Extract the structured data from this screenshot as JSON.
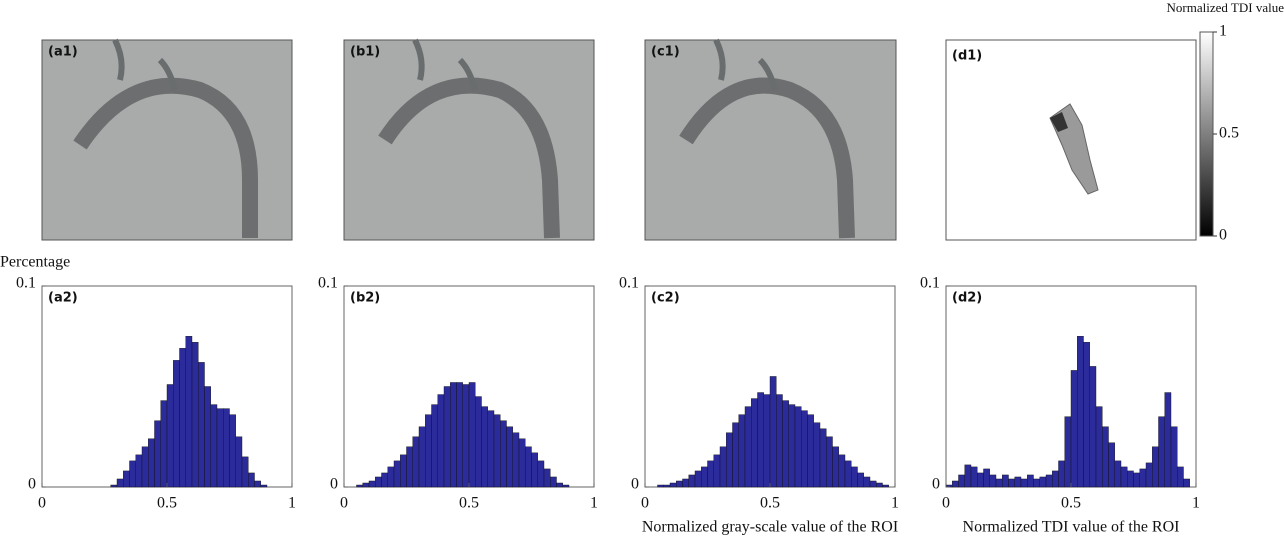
{
  "images": [
    {
      "label": "(a1)"
    },
    {
      "label": "(b1)"
    },
    {
      "label": "(c1)"
    },
    {
      "label": "(d1)"
    }
  ],
  "colorbar": {
    "title": "Normalized TDI value",
    "lim": [
      0,
      1
    ],
    "ticks": [
      0,
      0.5,
      1
    ]
  },
  "chart_data": [
    {
      "type": "histogram",
      "panel_label": "(a2)",
      "ylabel": "Percentage",
      "color": "#2b2b9c",
      "xlim": [
        0,
        1
      ],
      "ylim": [
        0,
        0.1
      ],
      "xticks": [
        0,
        0.5,
        1
      ],
      "yticks": [
        0,
        0.1
      ],
      "bins": [
        0,
        0.025,
        0.05,
        0.075,
        0.1,
        0.125,
        0.15,
        0.175,
        0.2,
        0.225,
        0.25,
        0.275,
        0.3,
        0.325,
        0.35,
        0.375,
        0.4,
        0.425,
        0.45,
        0.475,
        0.5,
        0.525,
        0.55,
        0.575,
        0.6,
        0.625,
        0.65,
        0.675,
        0.7,
        0.725,
        0.75,
        0.775,
        0.8,
        0.825,
        0.85,
        0.875,
        0.9,
        0.925,
        0.95,
        0.975,
        1
      ],
      "values": [
        0,
        0,
        0,
        0,
        0,
        0,
        0,
        0,
        0,
        0,
        0,
        0.001,
        0.004,
        0.008,
        0.013,
        0.016,
        0.02,
        0.024,
        0.033,
        0.043,
        0.051,
        0.063,
        0.069,
        0.075,
        0.072,
        0.062,
        0.05,
        0.041,
        0.039,
        0.039,
        0.036,
        0.025,
        0.015,
        0.007,
        0.003,
        0.001,
        0,
        0,
        0,
        0
      ]
    },
    {
      "type": "histogram",
      "panel_label": "(b2)",
      "color": "#2b2b9c",
      "xlim": [
        0,
        1
      ],
      "ylim": [
        0,
        0.1
      ],
      "xticks": [
        0,
        0.5,
        1
      ],
      "yticks": [
        0,
        0.1
      ],
      "bins": [
        0,
        0.025,
        0.05,
        0.075,
        0.1,
        0.125,
        0.15,
        0.175,
        0.2,
        0.225,
        0.25,
        0.275,
        0.3,
        0.325,
        0.35,
        0.375,
        0.4,
        0.425,
        0.45,
        0.475,
        0.5,
        0.525,
        0.55,
        0.575,
        0.6,
        0.625,
        0.65,
        0.675,
        0.7,
        0.725,
        0.75,
        0.775,
        0.8,
        0.825,
        0.85,
        0.875,
        0.9,
        0.925,
        0.95,
        0.975,
        1
      ],
      "values": [
        0,
        0,
        0.001,
        0.002,
        0.003,
        0.005,
        0.007,
        0.01,
        0.013,
        0.016,
        0.02,
        0.025,
        0.03,
        0.036,
        0.041,
        0.046,
        0.05,
        0.052,
        0.052,
        0.051,
        0.052,
        0.045,
        0.04,
        0.038,
        0.036,
        0.033,
        0.03,
        0.027,
        0.024,
        0.02,
        0.017,
        0.013,
        0.009,
        0.005,
        0.002,
        0.001,
        0,
        0,
        0,
        0
      ]
    },
    {
      "type": "histogram",
      "panel_label": "(c2)",
      "xlabel": "Normalized gray-scale value of the ROI",
      "color": "#2b2b9c",
      "xlim": [
        0,
        1
      ],
      "ylim": [
        0,
        0.1
      ],
      "xticks": [
        0,
        0.5,
        1
      ],
      "yticks": [
        0,
        0.1
      ],
      "bins": [
        0,
        0.025,
        0.05,
        0.075,
        0.1,
        0.125,
        0.15,
        0.175,
        0.2,
        0.225,
        0.25,
        0.275,
        0.3,
        0.325,
        0.35,
        0.375,
        0.4,
        0.425,
        0.45,
        0.475,
        0.5,
        0.525,
        0.55,
        0.575,
        0.6,
        0.625,
        0.65,
        0.675,
        0.7,
        0.725,
        0.75,
        0.775,
        0.8,
        0.825,
        0.85,
        0.875,
        0.9,
        0.925,
        0.95,
        0.975,
        1
      ],
      "values": [
        0,
        0,
        0.001,
        0.001,
        0.002,
        0.003,
        0.004,
        0.006,
        0.008,
        0.01,
        0.013,
        0.016,
        0.02,
        0.027,
        0.032,
        0.036,
        0.04,
        0.044,
        0.047,
        0.046,
        0.055,
        0.046,
        0.043,
        0.041,
        0.04,
        0.038,
        0.036,
        0.032,
        0.029,
        0.025,
        0.02,
        0.016,
        0.013,
        0.01,
        0.007,
        0.005,
        0.003,
        0.002,
        0.001,
        0
      ]
    },
    {
      "type": "histogram",
      "panel_label": "(d2)",
      "xlabel": "Normalized TDI value of the ROI",
      "color": "#2b2b9c",
      "xlim": [
        0,
        1
      ],
      "ylim": [
        0,
        0.1
      ],
      "xticks": [
        0,
        0.5,
        1
      ],
      "yticks": [
        0,
        0.1
      ],
      "bins": [
        0,
        0.025,
        0.05,
        0.075,
        0.1,
        0.125,
        0.15,
        0.175,
        0.2,
        0.225,
        0.25,
        0.275,
        0.3,
        0.325,
        0.35,
        0.375,
        0.4,
        0.425,
        0.45,
        0.475,
        0.5,
        0.525,
        0.55,
        0.575,
        0.6,
        0.625,
        0.65,
        0.675,
        0.7,
        0.725,
        0.75,
        0.775,
        0.8,
        0.825,
        0.85,
        0.875,
        0.9,
        0.925,
        0.95,
        0.975,
        1
      ],
      "values": [
        0.001,
        0.003,
        0.006,
        0.011,
        0.01,
        0.007,
        0.009,
        0.006,
        0.004,
        0.006,
        0.004,
        0.005,
        0.004,
        0.006,
        0.004,
        0.005,
        0.006,
        0.008,
        0.013,
        0.035,
        0.058,
        0.075,
        0.072,
        0.06,
        0.04,
        0.03,
        0.022,
        0.013,
        0.01,
        0.008,
        0.007,
        0.009,
        0.012,
        0.02,
        0.035,
        0.047,
        0.03,
        0.01,
        0.004,
        0
      ]
    }
  ]
}
